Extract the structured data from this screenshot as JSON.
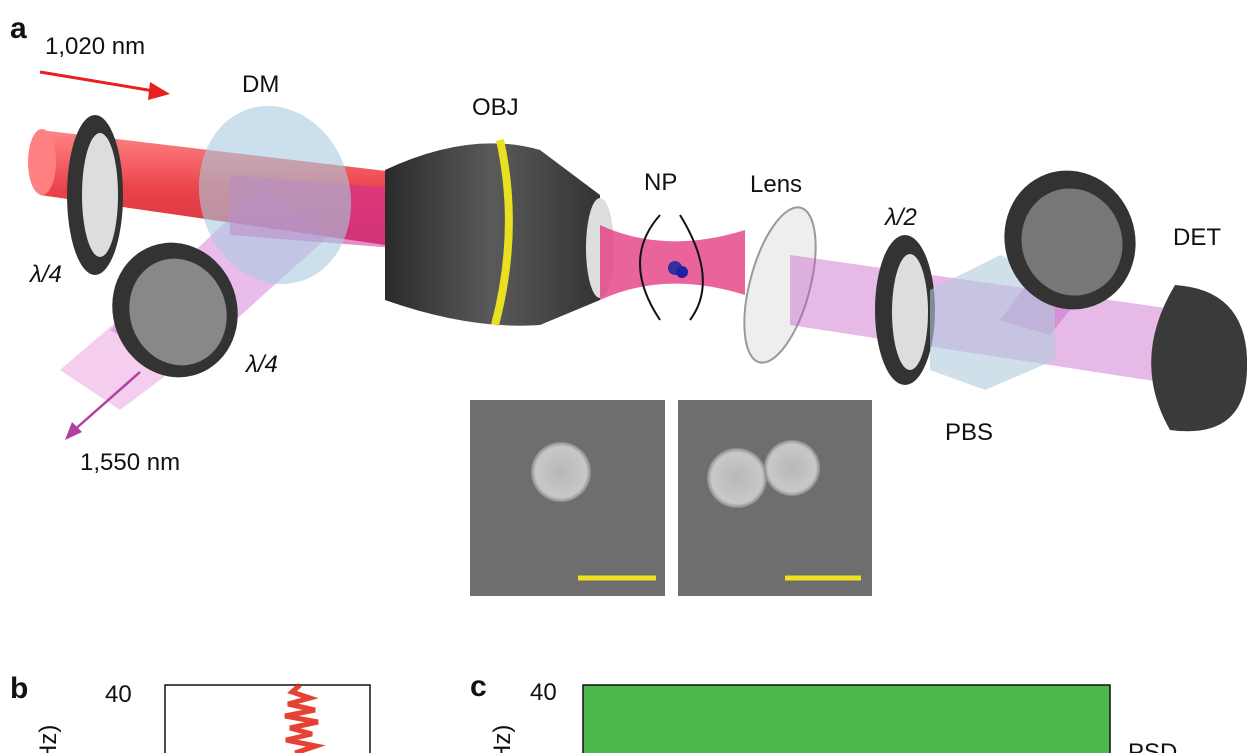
{
  "panel_a": {
    "label": "a",
    "labels": {
      "laser_1020": "1,020 nm",
      "dm": "DM",
      "obj": "OBJ",
      "np": "NP",
      "lens": "Lens",
      "half_wave": "λ/2",
      "det": "DET",
      "quarter_wave_1": "λ/4",
      "quarter_wave_2": "λ/4",
      "laser_1550": "1,550 nm",
      "pbs": "PBS"
    }
  },
  "panel_b": {
    "label": "b",
    "y_tick": "40",
    "y_axis_label": "(MHz)"
  },
  "panel_c": {
    "label": "c",
    "y_tick": "40",
    "y_axis_label": "(MHz)",
    "legend": "PSD"
  }
}
